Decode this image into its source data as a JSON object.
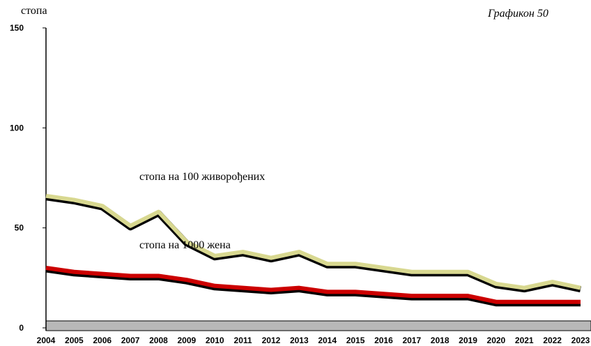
{
  "chart_data": {
    "type": "line",
    "title": "Графикон 50",
    "y_label": "стопа",
    "categories": [
      "2004",
      "2005",
      "2006",
      "2007",
      "2008",
      "2009",
      "2010",
      "2011",
      "2012",
      "2013",
      "2014",
      "2015",
      "2016",
      "2017",
      "2018",
      "2019",
      "2020",
      "2021",
      "2022",
      "2023"
    ],
    "series": [
      {
        "name": "стопа на 100 живорођених",
        "color": "#d8d890",
        "values": [
          66,
          64,
          61,
          51,
          58,
          43,
          36,
          38,
          35,
          38,
          32,
          32,
          30,
          28,
          28,
          28,
          22,
          20,
          23,
          20
        ]
      },
      {
        "name": "стопа на 1000 жена",
        "color": "#cc0000",
        "values": [
          30,
          28,
          27,
          26,
          26,
          24,
          21,
          20,
          19,
          20,
          18,
          18,
          17,
          16,
          16,
          16,
          13,
          13,
          13,
          13
        ]
      }
    ],
    "ylim": [
      0,
      150
    ],
    "yticks": [
      0,
      50,
      100,
      150
    ]
  }
}
